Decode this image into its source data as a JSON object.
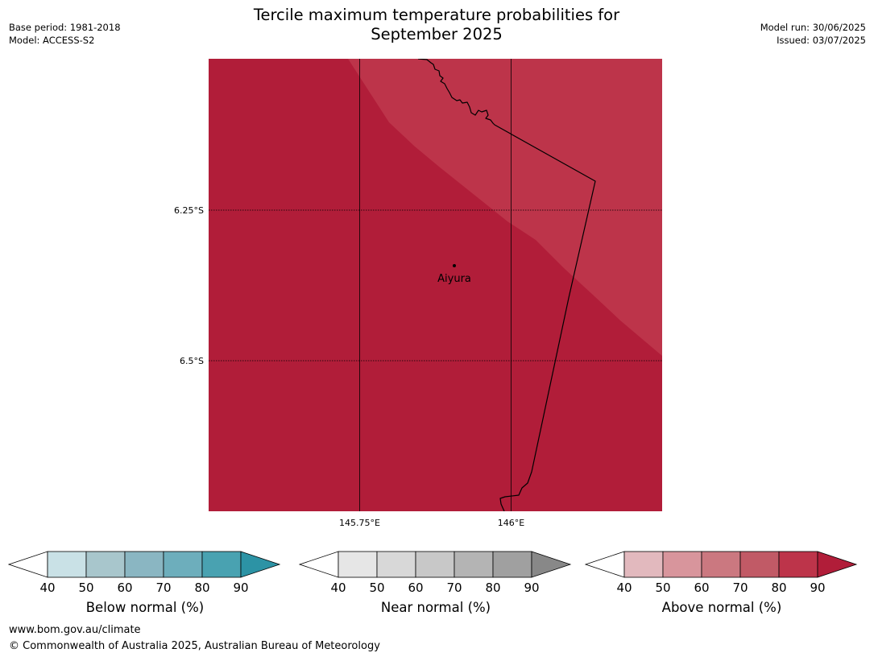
{
  "header": {
    "title_line1": "Tercile maximum temperature probabilities for",
    "title_line2": "September 2025",
    "base_period": "Base period: 1981-2018",
    "model": "Model: ACCESS-S2",
    "model_run": "Model run: 30/06/2025",
    "issued": "Issued: 03/07/2025"
  },
  "map": {
    "lat_labels": [
      "6.25°S",
      "6.5°S"
    ],
    "lon_labels": [
      "145.75°E",
      "146°E"
    ],
    "place": {
      "name": "Aiyura"
    },
    "colors": {
      "above_80_90": "#bd344a",
      "above_90_plus": "#b11d39",
      "coastline": "#000000"
    }
  },
  "colorbars": [
    {
      "title": "Below normal (%)",
      "ticks": [
        "40",
        "50",
        "60",
        "70",
        "80",
        "90"
      ],
      "colors": [
        "#ffffff",
        "#c9e1e6",
        "#a8c6cc",
        "#8ab6c2",
        "#6daebc",
        "#49a2b1",
        "#2c93a5"
      ]
    },
    {
      "title": "Near normal (%)",
      "ticks": [
        "40",
        "50",
        "60",
        "70",
        "80",
        "90"
      ],
      "colors": [
        "#ffffff",
        "#e6e6e6",
        "#d8d8d8",
        "#c8c8c8",
        "#b4b4b4",
        "#a0a0a0",
        "#888888"
      ]
    },
    {
      "title": "Above normal (%)",
      "ticks": [
        "40",
        "50",
        "60",
        "70",
        "80",
        "90"
      ],
      "colors": [
        "#ffffff",
        "#e2b9be",
        "#d8959c",
        "#cb7880",
        "#c15a66",
        "#bd344a",
        "#b11d39"
      ]
    }
  ],
  "footer": {
    "url": "www.bom.gov.au/climate",
    "copyright": "© Commonwealth of Australia 2025, Australian Bureau of Meteorology"
  }
}
